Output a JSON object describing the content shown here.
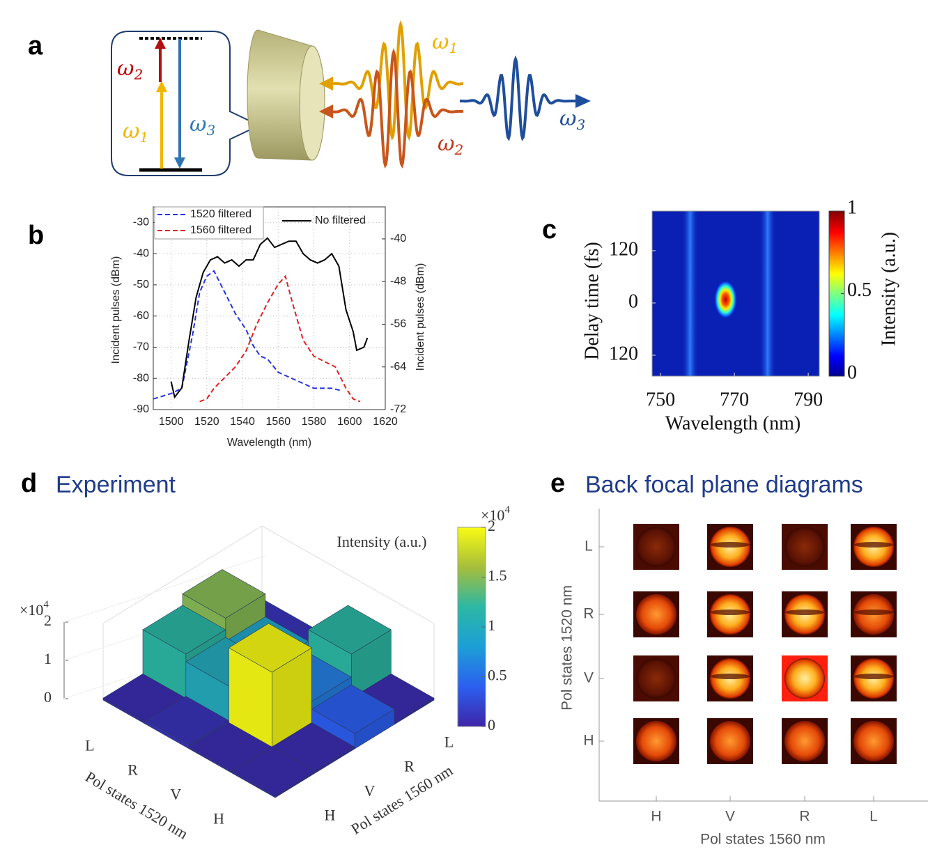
{
  "panel_a": {
    "panel_label": "a",
    "level_labels": [
      {
        "symbol": "ω",
        "sub": "2"
      },
      {
        "symbol": "ω",
        "sub": "1"
      },
      {
        "symbol": "ω",
        "sub": "3"
      }
    ],
    "pulse_labels": [
      {
        "symbol": "ω",
        "sub": "1"
      },
      {
        "symbol": "ω",
        "sub": "2"
      },
      {
        "symbol": "ω",
        "sub": "3"
      }
    ]
  },
  "chart_data": [
    {
      "type": "line",
      "panel_label": "b",
      "xlabel": "Wavelength (nm)",
      "ylabel": "Incident pulses (dBm)",
      "y2label": "Incident pulses (dBm)",
      "xlim": [
        1490,
        1620
      ],
      "ylim": [
        -90,
        -25
      ],
      "y2lim": [
        -72,
        -34
      ],
      "xticks": [
        1500,
        1520,
        1540,
        1560,
        1580,
        1600,
        1620
      ],
      "yticks": [
        -90,
        -80,
        -70,
        -60,
        -50,
        -40,
        -30
      ],
      "y2ticks": [
        -72,
        -64,
        -56,
        -48,
        -40
      ],
      "grid": true,
      "series": [
        {
          "name": "1520 filtered",
          "color": "#2233dd",
          "dashed": true,
          "axis": "y2",
          "x": [
            1490,
            1500,
            1506,
            1512,
            1516,
            1520,
            1524,
            1530,
            1536,
            1542,
            1546,
            1550,
            1554,
            1560,
            1570,
            1580,
            1590,
            1596
          ],
          "values": [
            -70,
            -69,
            -68,
            -58,
            -50,
            -47,
            -46,
            -50,
            -54,
            -57,
            -60,
            -62,
            -62.5,
            -65,
            -66.5,
            -68,
            -68,
            -68.5
          ]
        },
        {
          "name": "1560 filtered",
          "color": "#dd2222",
          "dashed": true,
          "axis": "y2",
          "x": [
            1516,
            1520,
            1524,
            1530,
            1536,
            1542,
            1548,
            1554,
            1560,
            1564,
            1568,
            1574,
            1580,
            1586,
            1592,
            1598,
            1602,
            1606
          ],
          "values": [
            -70.5,
            -70,
            -68,
            -66,
            -64,
            -61,
            -56,
            -52,
            -48.5,
            -47,
            -52,
            -59,
            -62,
            -63,
            -64,
            -68,
            -70,
            -70.5
          ]
        },
        {
          "name": "No filtered",
          "color": "#000000",
          "dashed": false,
          "x": [
            1500,
            1502,
            1506,
            1510,
            1514,
            1518,
            1522,
            1526,
            1530,
            1534,
            1538,
            1542,
            1546,
            1550,
            1554,
            1558,
            1562,
            1566,
            1570,
            1574,
            1578,
            1582,
            1586,
            1590,
            1594,
            1598,
            1602,
            1604,
            1608,
            1610
          ],
          "values": [
            -81,
            -86,
            -83,
            -68,
            -54,
            -46,
            -42,
            -41,
            -43,
            -42,
            -44,
            -42,
            -42,
            -37,
            -35,
            -38,
            -37,
            -36,
            -36,
            -40,
            -42,
            -43,
            -42,
            -40,
            -44,
            -58,
            -65,
            -71,
            -70,
            -67
          ]
        }
      ]
    },
    {
      "type": "heatmap",
      "panel_label": "c",
      "xlabel": "Wavelength (nm)",
      "ylabel": "Delay time (fs)",
      "xlim": [
        747.7,
        793
      ],
      "ylim": [
        -168,
        211
      ],
      "xticks": [
        750,
        770,
        790
      ],
      "yticks": [
        120,
        0,
        {
          "value": -120,
          "label": "120"
        }
      ],
      "bands": [
        758,
        779
      ],
      "peak": {
        "x": 767.6,
        "y": 8
      },
      "colorbar": {
        "label": "Intensity (a.u.)",
        "lim": [
          0,
          1
        ],
        "ticks": [
          0,
          0.5,
          1
        ]
      }
    },
    {
      "type": "bar3d",
      "panel_label": "d",
      "title": "Experiment",
      "xlabel": "Pol states 1520 nm",
      "ylabel": "Pol states 1560 nm",
      "categories_x": [
        "L",
        "R",
        "V",
        "H"
      ],
      "categories_y": [
        "H",
        "V",
        "R",
        "L"
      ],
      "values": [
        [
          0.05,
          1.2,
          1.5,
          0.1
        ],
        [
          0.1,
          1.0,
          0.9,
          0.1
        ],
        [
          0.05,
          2.0,
          0.6,
          1.2
        ],
        [
          0.05,
          0.05,
          0.4,
          0.05
        ]
      ],
      "zlim": [
        0,
        2
      ],
      "zticks": [
        0,
        1,
        2
      ],
      "zexponent": {
        "base": "×10",
        "exp": "4"
      },
      "colorbar": {
        "label": "Intensity (a.u.)",
        "lim": [
          0,
          2
        ],
        "ticks": [
          0,
          0.5,
          1,
          1.5,
          2
        ],
        "exponent": {
          "base": "×10",
          "exp": "4"
        }
      }
    }
  ],
  "panel_e": {
    "panel_label": "e",
    "title": "Back focal plane diagrams",
    "xlabel": "Pol states 1560 nm",
    "ylabel": "Pol states 1520 nm",
    "columns": [
      "H",
      "V",
      "R",
      "L"
    ],
    "rows": [
      "L",
      "R",
      "V",
      "H"
    ]
  }
}
